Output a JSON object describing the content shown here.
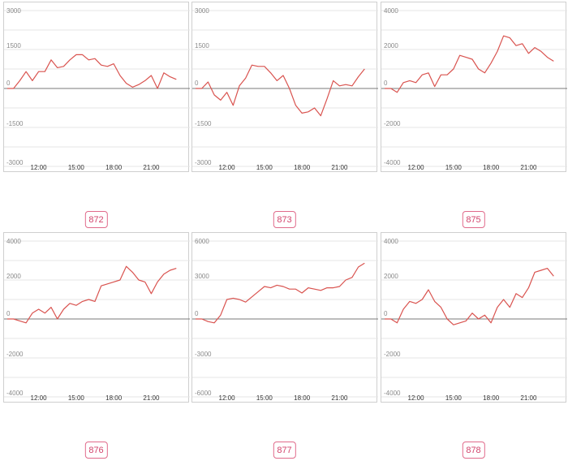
{
  "style": {
    "line_color": "#d9534f",
    "zero_line_color": "#7a7a7a",
    "grid_color": "#e4e4e4",
    "badge_color": "#d2446c",
    "border_color": "#cfcfcf"
  },
  "chart_data": [
    {
      "type": "line",
      "label": "872",
      "x_ticks": [
        "12:00",
        "15:00",
        "18:00",
        "21:00"
      ],
      "y_ticks": [
        "3000",
        "1500",
        "0",
        "-1500",
        "-3000"
      ],
      "ylim": [
        -3000,
        3000
      ],
      "xlim": [
        9.5,
        23.5
      ],
      "grid": true,
      "series": [
        {
          "x": [
            9.5,
            10.0,
            10.5,
            11.0,
            11.5,
            12.0,
            12.5,
            13.0,
            13.5,
            14.0,
            14.5,
            15.0,
            15.5,
            16.0,
            16.5,
            17.0,
            17.5,
            18.0,
            18.5,
            19.0,
            19.5,
            20.0,
            20.5,
            21.0,
            21.5,
            22.0,
            22.5,
            23.0
          ],
          "y": [
            0,
            0,
            300,
            650,
            300,
            650,
            650,
            1100,
            800,
            850,
            1100,
            1300,
            1300,
            1100,
            1150,
            900,
            850,
            950,
            500,
            200,
            50,
            150,
            300,
            500,
            0,
            600,
            450,
            350
          ]
        }
      ]
    },
    {
      "type": "line",
      "label": "873",
      "x_ticks": [
        "12:00",
        "15:00",
        "18:00",
        "21:00"
      ],
      "y_ticks": [
        "3000",
        "1500",
        "0",
        "-1500",
        "-3000"
      ],
      "ylim": [
        -3000,
        3000
      ],
      "xlim": [
        9.5,
        23.5
      ],
      "grid": true,
      "series": [
        {
          "x": [
            9.5,
            10.0,
            10.5,
            11.0,
            11.5,
            12.0,
            12.5,
            13.0,
            13.5,
            14.0,
            14.5,
            15.0,
            15.5,
            16.0,
            16.5,
            17.0,
            17.5,
            18.0,
            18.5,
            19.0,
            19.5,
            20.0,
            20.5,
            21.0,
            21.5,
            22.0,
            22.5,
            23.0
          ],
          "y": [
            0,
            0,
            250,
            -250,
            -450,
            -150,
            -650,
            100,
            400,
            900,
            850,
            850,
            600,
            300,
            500,
            0,
            -650,
            -950,
            -900,
            -750,
            -1050,
            -400,
            300,
            100,
            150,
            100,
            450,
            750
          ]
        }
      ]
    },
    {
      "type": "line",
      "label": "875",
      "x_ticks": [
        "12:00",
        "15:00",
        "18:00",
        "21:00"
      ],
      "y_ticks": [
        "4000",
        "2000",
        "0",
        "-2000",
        "-4000"
      ],
      "ylim": [
        -4000,
        4000
      ],
      "xlim": [
        9.5,
        23.5
      ],
      "grid": true,
      "series": [
        {
          "x": [
            9.5,
            10.0,
            10.5,
            11.0,
            11.5,
            12.0,
            12.5,
            13.0,
            13.5,
            14.0,
            14.5,
            15.0,
            15.5,
            16.0,
            16.5,
            17.0,
            17.5,
            18.0,
            18.5,
            19.0,
            19.5,
            20.0,
            20.5,
            21.0,
            21.5,
            22.0,
            22.5,
            23.0
          ],
          "y": [
            0,
            0,
            -200,
            300,
            400,
            300,
            700,
            800,
            100,
            700,
            700,
            1000,
            1700,
            1600,
            1500,
            1000,
            800,
            1300,
            1900,
            2700,
            2600,
            2200,
            2300,
            1800,
            2100,
            1900,
            1600,
            1400
          ]
        }
      ]
    },
    {
      "type": "line",
      "label": "876",
      "x_ticks": [
        "12:00",
        "15:00",
        "18:00",
        "21:00"
      ],
      "y_ticks": [
        "4000",
        "2000",
        "0",
        "-2000",
        "-4000"
      ],
      "ylim": [
        -4000,
        4000
      ],
      "xlim": [
        9.5,
        23.5
      ],
      "grid": true,
      "series": [
        {
          "x": [
            9.5,
            10.0,
            10.5,
            11.0,
            11.5,
            12.0,
            12.5,
            13.0,
            13.5,
            14.0,
            14.5,
            15.0,
            15.5,
            16.0,
            16.5,
            17.0,
            17.5,
            18.0,
            18.5,
            19.0,
            19.5,
            20.0,
            20.5,
            21.0,
            21.5,
            22.0,
            22.5,
            23.0
          ],
          "y": [
            0,
            0,
            -100,
            -200,
            300,
            500,
            300,
            600,
            0,
            500,
            800,
            700,
            900,
            1000,
            900,
            1700,
            1800,
            1900,
            2000,
            2700,
            2400,
            2000,
            1900,
            1300,
            1900,
            2300,
            2500,
            2600
          ]
        }
      ]
    },
    {
      "type": "line",
      "label": "877",
      "x_ticks": [
        "12:00",
        "15:00",
        "18:00",
        "21:00"
      ],
      "y_ticks": [
        "6000",
        "3000",
        "0",
        "-3000",
        "-6000"
      ],
      "ylim": [
        -6000,
        6000
      ],
      "xlim": [
        9.5,
        23.5
      ],
      "grid": true,
      "series": [
        {
          "x": [
            9.5,
            10.0,
            10.5,
            11.0,
            11.5,
            12.0,
            12.5,
            13.0,
            13.5,
            14.0,
            14.5,
            15.0,
            15.5,
            16.0,
            16.5,
            17.0,
            17.5,
            18.0,
            18.5,
            19.0,
            19.5,
            20.0,
            20.5,
            21.0,
            21.5,
            22.0,
            22.5,
            23.0
          ],
          "y": [
            0,
            0,
            -200,
            -300,
            300,
            1500,
            1600,
            1500,
            1300,
            1700,
            2100,
            2500,
            2400,
            2600,
            2500,
            2300,
            2300,
            2000,
            2400,
            2300,
            2200,
            2400,
            2400,
            2500,
            3000,
            3200,
            4000,
            4300
          ]
        }
      ]
    },
    {
      "type": "line",
      "label": "878",
      "x_ticks": [
        "12:00",
        "15:00",
        "18:00",
        "21:00"
      ],
      "y_ticks": [
        "4000",
        "2000",
        "0",
        "-2000",
        "-4000"
      ],
      "ylim": [
        -4000,
        4000
      ],
      "xlim": [
        9.5,
        23.5
      ],
      "grid": true,
      "series": [
        {
          "x": [
            9.5,
            10.0,
            10.5,
            11.0,
            11.5,
            12.0,
            12.5,
            13.0,
            13.5,
            14.0,
            14.5,
            15.0,
            15.5,
            16.0,
            16.5,
            17.0,
            17.5,
            18.0,
            18.5,
            19.0,
            19.5,
            20.0,
            20.5,
            21.0,
            21.5,
            22.0,
            22.5,
            23.0
          ],
          "y": [
            0,
            0,
            -200,
            500,
            900,
            800,
            1000,
            1500,
            900,
            600,
            0,
            -300,
            -200,
            -100,
            300,
            0,
            200,
            -200,
            600,
            1000,
            600,
            1300,
            1100,
            1600,
            2400,
            2500,
            2600,
            2200
          ]
        }
      ]
    }
  ]
}
